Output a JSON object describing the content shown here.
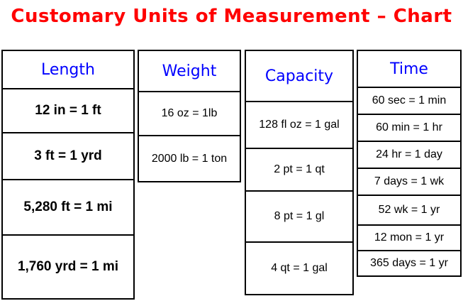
{
  "title": "Customary Units of Measurement – Chart",
  "length": {
    "header": "Length",
    "rows": [
      "12 in = 1 ft",
      "3 ft = 1 yrd",
      "5,280 ft = 1 mi",
      "1,760 yrd = 1 mi"
    ]
  },
  "weight": {
    "header": "Weight",
    "rows": [
      "16 oz = 1lb",
      "2000 lb = 1 ton"
    ]
  },
  "capacity": {
    "header": "Capacity",
    "rows": [
      "128 fl oz = 1 gal",
      "2 pt = 1 qt",
      "8 pt = 1 gl",
      "4 qt = 1 gal"
    ]
  },
  "time": {
    "header": "Time",
    "rows": [
      "60 sec = 1 min",
      "60 min = 1 hr",
      "24 hr = 1 day",
      "7 days = 1 wk",
      "52 wk = 1 yr",
      "12 mon = 1 yr",
      "365 days = 1 yr"
    ]
  },
  "colors": {
    "title": "#ff0000",
    "header": "#0000ff",
    "border": "#000000"
  }
}
